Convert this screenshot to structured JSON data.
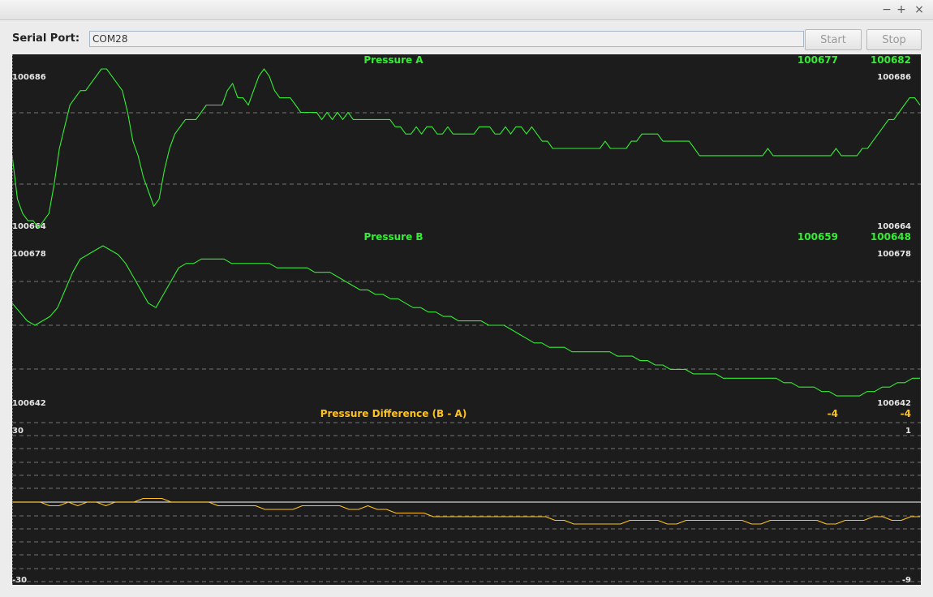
{
  "window": {
    "controls": [
      {
        "name": "minimize-icon",
        "glyph": "−"
      },
      {
        "name": "maximize-icon",
        "glyph": "+"
      },
      {
        "name": "close-icon",
        "glyph": "×"
      }
    ]
  },
  "toolbar": {
    "port_label": "Serial Port:",
    "port_value": "COM28",
    "start_label": "Start",
    "stop_label": "Stop"
  },
  "colors": {
    "green": "#33ee33",
    "yellow": "#ffc21a",
    "background": "#1c1c1c",
    "axis_text": "#e6e6e6",
    "grid": "#8a8a8a"
  },
  "chart_data": [
    {
      "type": "line",
      "title": "Pressure A",
      "min_label": "100686",
      "max_label": "100664",
      "top_label": "100686",
      "bottom_label": "100664",
      "right_top_label": "100686",
      "right_bottom_label": "100664",
      "value_left": "100677",
      "value_right": "100682",
      "ylim": [
        100664,
        100686
      ],
      "series": [
        {
          "color": "#33ee33",
          "values": [
            100674,
            100668,
            100666,
            100665,
            100665,
            100664,
            100665,
            100666,
            100670,
            100675,
            100678,
            100681,
            100682,
            100683,
            100683,
            100684,
            100685,
            100686,
            100686,
            100685,
            100684,
            100683,
            100680,
            100676,
            100674,
            100671,
            100669,
            100667,
            100668,
            100672,
            100675,
            100677,
            100678,
            100679,
            100679,
            100679,
            100680,
            100681,
            100681,
            100681,
            100681,
            100683,
            100684,
            100682,
            100682,
            100681,
            100683,
            100685,
            100686,
            100685,
            100683,
            100682,
            100682,
            100682,
            100681,
            100680,
            100680,
            100680,
            100680,
            100679,
            100680,
            100679,
            100680,
            100679,
            100680,
            100679,
            100679,
            100679,
            100679,
            100679,
            100679,
            100679,
            100679,
            100678,
            100678,
            100677,
            100677,
            100678,
            100677,
            100678,
            100678,
            100677,
            100677,
            100678,
            100677,
            100677,
            100677,
            100677,
            100677,
            100678,
            100678,
            100678,
            100677,
            100677,
            100678,
            100677,
            100678,
            100678,
            100677,
            100678,
            100677,
            100676,
            100676,
            100675,
            100675,
            100675,
            100675,
            100675,
            100675,
            100675,
            100675,
            100675,
            100675,
            100676,
            100675,
            100675,
            100675,
            100675,
            100676,
            100676,
            100677,
            100677,
            100677,
            100677,
            100676,
            100676,
            100676,
            100676,
            100676,
            100676,
            100675,
            100674,
            100674,
            100674,
            100674,
            100674,
            100674,
            100674,
            100674,
            100674,
            100674,
            100674,
            100674,
            100674,
            100675,
            100674,
            100674,
            100674,
            100674,
            100674,
            100674,
            100674,
            100674,
            100674,
            100674,
            100674,
            100674,
            100675,
            100674,
            100674,
            100674,
            100674,
            100675,
            100675,
            100676,
            100677,
            100678,
            100679,
            100679,
            100680,
            100681,
            100682,
            100682,
            100681
          ]
        }
      ]
    },
    {
      "type": "line",
      "title": "Pressure B",
      "top_label": "100678",
      "bottom_label": "100642",
      "right_top_label": "100678",
      "right_bottom_label": "100642",
      "value_left": "100659",
      "value_right": "100648",
      "ylim": [
        100642,
        100678
      ],
      "series": [
        {
          "color": "#33ee33",
          "values": [
            100665,
            100663,
            100661,
            100660,
            100661,
            100662,
            100664,
            100668,
            100672,
            100675,
            100676,
            100677,
            100678,
            100677,
            100676,
            100674,
            100671,
            100668,
            100665,
            100664,
            100667,
            100670,
            100673,
            100674,
            100674,
            100675,
            100675,
            100675,
            100675,
            100674,
            100674,
            100674,
            100674,
            100674,
            100674,
            100673,
            100673,
            100673,
            100673,
            100673,
            100672,
            100672,
            100672,
            100671,
            100670,
            100669,
            100668,
            100668,
            100667,
            100667,
            100666,
            100666,
            100665,
            100664,
            100664,
            100663,
            100663,
            100662,
            100662,
            100661,
            100661,
            100661,
            100661,
            100660,
            100660,
            100660,
            100659,
            100658,
            100657,
            100656,
            100656,
            100655,
            100655,
            100655,
            100654,
            100654,
            100654,
            100654,
            100654,
            100654,
            100653,
            100653,
            100653,
            100652,
            100652,
            100651,
            100651,
            100650,
            100650,
            100650,
            100649,
            100649,
            100649,
            100649,
            100648,
            100648,
            100648,
            100648,
            100648,
            100648,
            100648,
            100648,
            100647,
            100647,
            100646,
            100646,
            100646,
            100645,
            100645,
            100644,
            100644,
            100644,
            100644,
            100645,
            100645,
            100646,
            100646,
            100647,
            100647,
            100648,
            100648
          ]
        }
      ]
    },
    {
      "type": "line",
      "title": "Pressure Difference (B - A)",
      "top_label": "30",
      "bottom_label": "-30",
      "right_top_label": "1",
      "right_bottom_label": "-9",
      "value_left": "-4",
      "value_right": "-4",
      "ylim": [
        -30,
        30
      ],
      "series": [
        {
          "color": "#ffc21a",
          "values": [
            0,
            0,
            0,
            0,
            -1,
            -1,
            0,
            -1,
            0,
            0,
            -1,
            0,
            0,
            0,
            1,
            1,
            1,
            0,
            0,
            0,
            0,
            0,
            -1,
            -1,
            -1,
            -1,
            -1,
            -2,
            -2,
            -2,
            -2,
            -1,
            -1,
            -1,
            -1,
            -1,
            -2,
            -2,
            -1,
            -2,
            -2,
            -3,
            -3,
            -3,
            -3,
            -4,
            -4,
            -4,
            -4,
            -4,
            -4,
            -4,
            -4,
            -4,
            -4,
            -4,
            -4,
            -4,
            -5,
            -5,
            -6,
            -6,
            -6,
            -6,
            -6,
            -6,
            -5,
            -5,
            -5,
            -5,
            -6,
            -6,
            -5,
            -5,
            -5,
            -5,
            -5,
            -5,
            -5,
            -6,
            -6,
            -5,
            -5,
            -5,
            -5,
            -5,
            -5,
            -6,
            -6,
            -5,
            -5,
            -5,
            -4,
            -4,
            -5,
            -5,
            -4,
            -4
          ]
        }
      ]
    }
  ]
}
